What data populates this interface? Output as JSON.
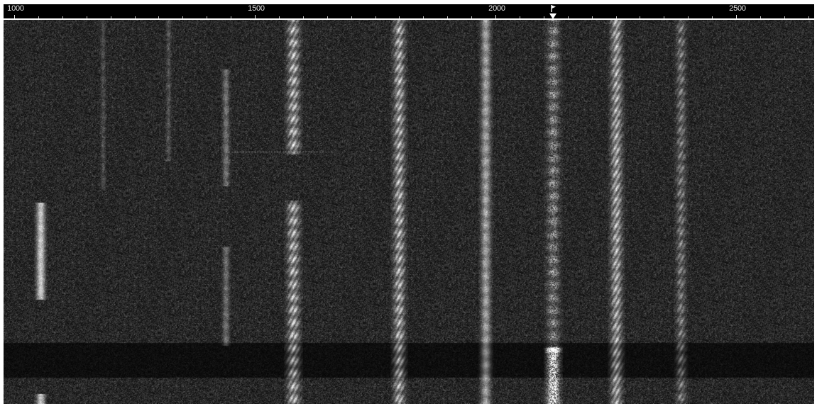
{
  "window": {
    "view": "Waterfall spectrogram",
    "background_color": "#000000",
    "trace_color": "#ffffff",
    "noise_color": "#3a3a3a"
  },
  "ruler": {
    "unit": "Hz",
    "range": [
      1000,
      2680
    ],
    "major_step": 500,
    "minor_step": 50,
    "labels": [
      "1000",
      "1500",
      "2000",
      "2500"
    ],
    "marker": {
      "frequency": 2120,
      "icon": "flag-icon",
      "caret": "triangle-down-icon"
    }
  },
  "signals": [
    {
      "frequency": 1055,
      "kind": "bursty"
    },
    {
      "frequency": 1185,
      "kind": "faint"
    },
    {
      "frequency": 1320,
      "kind": "faint"
    },
    {
      "frequency": 1440,
      "kind": "faint"
    },
    {
      "frequency": 1580,
      "kind": "strong"
    },
    {
      "frequency": 1800,
      "kind": "strong"
    },
    {
      "frequency": 1980,
      "kind": "medium"
    },
    {
      "frequency": 2120,
      "kind": "speckled"
    },
    {
      "frequency": 2250,
      "kind": "strong"
    },
    {
      "frequency": 2385,
      "kind": "chain"
    }
  ]
}
